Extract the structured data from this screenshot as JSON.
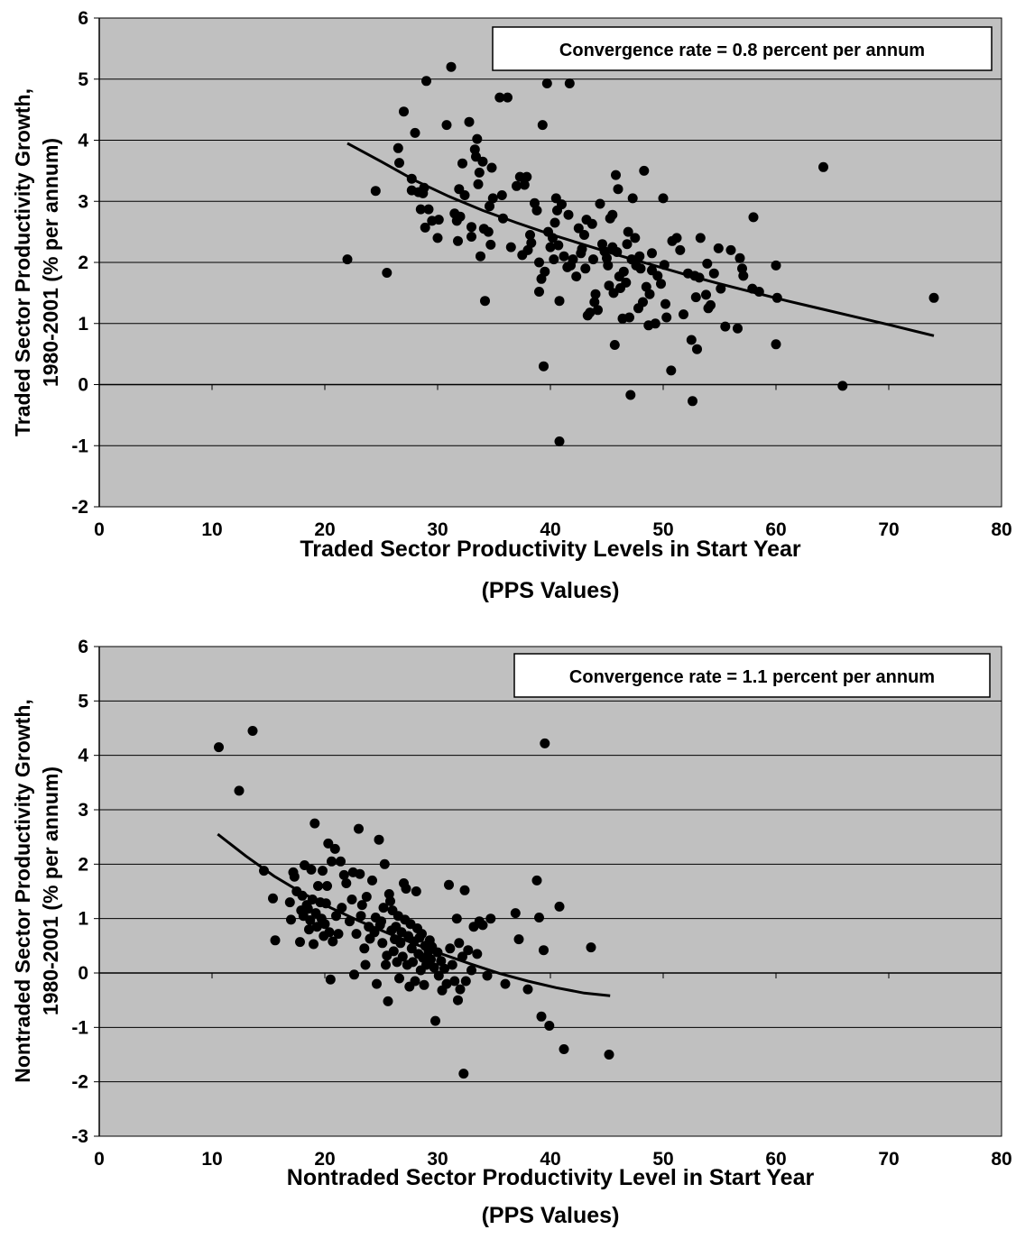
{
  "chart_data": [
    {
      "type": "scatter",
      "annotation": "Convergence rate = 0.8 percent per annum",
      "xlabel": [
        "Traded Sector Productivity Levels in Start Year",
        "(PPS Values)"
      ],
      "ylabel": [
        "Traded Sector Productivity Growth,",
        "1980-2001 (% per annum)"
      ],
      "xlim": [
        0,
        80
      ],
      "ylim": [
        -2,
        6
      ],
      "xticks": [
        0,
        10,
        20,
        30,
        40,
        50,
        60,
        70,
        80
      ],
      "yticks": [
        -2,
        -1,
        0,
        1,
        2,
        3,
        4,
        5,
        6
      ],
      "grid": "horizontal",
      "plot_background": "#c0c0c0",
      "marker_color": "#000000",
      "trendline": {
        "x": [
          22,
          25,
          28,
          31,
          34,
          37,
          40,
          43,
          46,
          49,
          52,
          55,
          58,
          61,
          64,
          67,
          70,
          74
        ],
        "y": [
          3.95,
          3.65,
          3.34,
          3.08,
          2.85,
          2.65,
          2.46,
          2.29,
          2.12,
          1.96,
          1.8,
          1.65,
          1.51,
          1.37,
          1.24,
          1.11,
          0.98,
          0.8
        ]
      },
      "points": [
        [
          22.0,
          2.05
        ],
        [
          24.5,
          3.17
        ],
        [
          25.5,
          1.83
        ],
        [
          26.5,
          3.87
        ],
        [
          26.6,
          3.63
        ],
        [
          27.0,
          4.47
        ],
        [
          27.7,
          3.37
        ],
        [
          27.7,
          3.18
        ],
        [
          28.0,
          4.12
        ],
        [
          28.3,
          3.15
        ],
        [
          28.5,
          2.87
        ],
        [
          28.7,
          3.13
        ],
        [
          28.8,
          3.22
        ],
        [
          28.9,
          2.57
        ],
        [
          29.0,
          4.97
        ],
        [
          29.2,
          2.87
        ],
        [
          29.5,
          2.68
        ],
        [
          30.0,
          2.4
        ],
        [
          30.1,
          2.7
        ],
        [
          30.8,
          4.25
        ],
        [
          31.2,
          5.2
        ],
        [
          31.5,
          2.8
        ],
        [
          31.7,
          2.68
        ],
        [
          31.8,
          2.35
        ],
        [
          31.9,
          3.2
        ],
        [
          32.0,
          2.75
        ],
        [
          32.2,
          3.62
        ],
        [
          32.4,
          3.1
        ],
        [
          32.8,
          4.3
        ],
        [
          33.0,
          2.42
        ],
        [
          33.0,
          2.58
        ],
        [
          33.3,
          3.85
        ],
        [
          33.4,
          3.73
        ],
        [
          33.5,
          4.02
        ],
        [
          33.6,
          3.28
        ],
        [
          33.7,
          3.47
        ],
        [
          33.8,
          2.1
        ],
        [
          34.0,
          3.65
        ],
        [
          34.1,
          2.55
        ],
        [
          34.2,
          1.37
        ],
        [
          34.5,
          2.5
        ],
        [
          34.6,
          2.92
        ],
        [
          34.7,
          2.29
        ],
        [
          34.8,
          3.55
        ],
        [
          34.9,
          3.05
        ],
        [
          35.5,
          4.7
        ],
        [
          35.7,
          3.1
        ],
        [
          35.8,
          2.72
        ],
        [
          36.2,
          4.7
        ],
        [
          36.5,
          2.25
        ],
        [
          37.0,
          3.25
        ],
        [
          37.3,
          3.4
        ],
        [
          37.5,
          2.12
        ],
        [
          37.7,
          3.27
        ],
        [
          37.9,
          3.4
        ],
        [
          38.0,
          2.2
        ],
        [
          38.2,
          2.45
        ],
        [
          38.3,
          2.32
        ],
        [
          38.6,
          2.97
        ],
        [
          38.8,
          2.85
        ],
        [
          39.0,
          1.52
        ],
        [
          39.0,
          2.0
        ],
        [
          39.2,
          1.73
        ],
        [
          39.3,
          4.25
        ],
        [
          39.4,
          0.3
        ],
        [
          39.5,
          1.85
        ],
        [
          39.7,
          4.93
        ],
        [
          39.8,
          2.5
        ],
        [
          40.0,
          2.25
        ],
        [
          40.2,
          2.4
        ],
        [
          40.3,
          2.05
        ],
        [
          40.4,
          2.65
        ],
        [
          40.5,
          3.05
        ],
        [
          40.6,
          2.85
        ],
        [
          40.7,
          2.28
        ],
        [
          40.8,
          1.37
        ],
        [
          40.8,
          -0.93
        ],
        [
          41.0,
          2.95
        ],
        [
          41.2,
          2.1
        ],
        [
          41.5,
          1.92
        ],
        [
          41.6,
          2.78
        ],
        [
          41.7,
          4.93
        ],
        [
          41.8,
          1.95
        ],
        [
          42.0,
          2.05
        ],
        [
          42.3,
          1.77
        ],
        [
          42.5,
          2.56
        ],
        [
          42.7,
          2.15
        ],
        [
          42.8,
          2.22
        ],
        [
          43.0,
          2.45
        ],
        [
          43.1,
          1.9
        ],
        [
          43.2,
          2.7
        ],
        [
          43.3,
          1.13
        ],
        [
          43.5,
          1.18
        ],
        [
          43.7,
          2.63
        ],
        [
          43.8,
          2.05
        ],
        [
          43.9,
          1.35
        ],
        [
          44.0,
          1.48
        ],
        [
          44.2,
          1.22
        ],
        [
          44.4,
          2.96
        ],
        [
          44.6,
          2.3
        ],
        [
          44.8,
          2.18
        ],
        [
          45.0,
          2.07
        ],
        [
          45.1,
          1.95
        ],
        [
          45.2,
          1.62
        ],
        [
          45.3,
          2.72
        ],
        [
          45.5,
          2.25
        ],
        [
          45.5,
          2.78
        ],
        [
          45.6,
          1.5
        ],
        [
          45.7,
          0.65
        ],
        [
          45.8,
          3.43
        ],
        [
          45.9,
          2.17
        ],
        [
          46.0,
          3.2
        ],
        [
          46.1,
          1.77
        ],
        [
          46.2,
          1.58
        ],
        [
          46.4,
          1.08
        ],
        [
          46.5,
          1.85
        ],
        [
          46.7,
          1.67
        ],
        [
          46.8,
          2.3
        ],
        [
          46.9,
          2.5
        ],
        [
          47.0,
          1.1
        ],
        [
          47.1,
          -0.17
        ],
        [
          47.2,
          2.05
        ],
        [
          47.3,
          3.05
        ],
        [
          47.5,
          2.4
        ],
        [
          47.6,
          1.95
        ],
        [
          47.8,
          1.25
        ],
        [
          47.9,
          2.1
        ],
        [
          48.0,
          1.9
        ],
        [
          48.2,
          1.35
        ],
        [
          48.3,
          3.5
        ],
        [
          48.5,
          1.6
        ],
        [
          48.7,
          0.97
        ],
        [
          48.8,
          1.48
        ],
        [
          49.0,
          1.87
        ],
        [
          49.0,
          2.15
        ],
        [
          49.3,
          1.0
        ],
        [
          49.5,
          1.78
        ],
        [
          49.8,
          1.65
        ],
        [
          50.0,
          3.05
        ],
        [
          50.1,
          1.96
        ],
        [
          50.2,
          1.32
        ],
        [
          50.3,
          1.1
        ],
        [
          50.7,
          0.23
        ],
        [
          50.8,
          2.35
        ],
        [
          51.2,
          2.4
        ],
        [
          51.5,
          2.2
        ],
        [
          51.8,
          1.15
        ],
        [
          52.2,
          1.82
        ],
        [
          52.5,
          0.73
        ],
        [
          52.6,
          -0.27
        ],
        [
          52.8,
          1.78
        ],
        [
          52.9,
          1.43
        ],
        [
          53.0,
          0.58
        ],
        [
          53.2,
          1.75
        ],
        [
          53.3,
          2.4
        ],
        [
          53.8,
          1.47
        ],
        [
          53.9,
          1.98
        ],
        [
          54.0,
          1.25
        ],
        [
          54.2,
          1.3
        ],
        [
          54.5,
          1.82
        ],
        [
          54.9,
          2.23
        ],
        [
          55.1,
          1.57
        ],
        [
          55.5,
          0.95
        ],
        [
          56.0,
          2.2
        ],
        [
          56.6,
          0.92
        ],
        [
          56.8,
          2.07
        ],
        [
          57.0,
          1.9
        ],
        [
          57.1,
          1.78
        ],
        [
          57.9,
          1.57
        ],
        [
          58.0,
          2.74
        ],
        [
          58.5,
          1.52
        ],
        [
          60.0,
          1.95
        ],
        [
          60.0,
          0.66
        ],
        [
          60.1,
          1.42
        ],
        [
          64.2,
          3.56
        ],
        [
          65.9,
          -0.02
        ],
        [
          74.0,
          1.42
        ]
      ]
    },
    {
      "type": "scatter",
      "annotation": "Convergence rate = 1.1 percent per annum",
      "xlabel": [
        "Nontraded Sector Productivity Level in Start Year",
        "(PPS Values)"
      ],
      "ylabel": [
        "Nontraded Sector Productivity Growth,",
        "1980-2001 (% per annum)"
      ],
      "xlim": [
        0,
        80
      ],
      "ylim": [
        -3,
        6
      ],
      "xticks": [
        0,
        10,
        20,
        30,
        40,
        50,
        60,
        70,
        80
      ],
      "yticks": [
        -3,
        -2,
        -1,
        0,
        1,
        2,
        3,
        4,
        5,
        6
      ],
      "grid": "horizontal",
      "plot_background": "#c0c0c0",
      "marker_color": "#000000",
      "trendline": {
        "x": [
          10.5,
          13,
          15.5,
          18,
          20.5,
          23,
          25.5,
          28,
          30.5,
          33,
          35.5,
          38,
          40.5,
          43,
          45.3
        ],
        "y": [
          2.55,
          2.15,
          1.78,
          1.47,
          1.2,
          0.96,
          0.74,
          0.53,
          0.34,
          0.16,
          -0.01,
          -0.15,
          -0.27,
          -0.37,
          -0.42
        ]
      },
      "points": [
        [
          10.6,
          4.15
        ],
        [
          12.4,
          3.35
        ],
        [
          13.6,
          4.45
        ],
        [
          14.6,
          1.88
        ],
        [
          15.4,
          1.37
        ],
        [
          15.6,
          0.6
        ],
        [
          16.9,
          1.3
        ],
        [
          17.0,
          0.98
        ],
        [
          17.2,
          1.85
        ],
        [
          17.3,
          1.77
        ],
        [
          17.5,
          1.5
        ],
        [
          17.8,
          0.57
        ],
        [
          17.9,
          1.15
        ],
        [
          18.0,
          1.42
        ],
        [
          18.1,
          1.05
        ],
        [
          18.2,
          1.98
        ],
        [
          18.4,
          1.25
        ],
        [
          18.5,
          1.18
        ],
        [
          18.6,
          0.8
        ],
        [
          18.7,
          0.97
        ],
        [
          18.8,
          1.9
        ],
        [
          18.9,
          1.35
        ],
        [
          19.0,
          0.53
        ],
        [
          19.1,
          2.75
        ],
        [
          19.2,
          1.1
        ],
        [
          19.3,
          0.85
        ],
        [
          19.4,
          1.6
        ],
        [
          19.6,
          1.3
        ],
        [
          19.7,
          1.0
        ],
        [
          19.8,
          1.88
        ],
        [
          19.9,
          0.68
        ],
        [
          20.0,
          0.9
        ],
        [
          20.1,
          1.28
        ],
        [
          20.2,
          1.6
        ],
        [
          20.3,
          2.38
        ],
        [
          20.4,
          0.75
        ],
        [
          20.5,
          -0.12
        ],
        [
          20.6,
          2.05
        ],
        [
          20.7,
          0.58
        ],
        [
          20.9,
          2.28
        ],
        [
          21.0,
          1.05
        ],
        [
          21.2,
          0.72
        ],
        [
          21.4,
          2.05
        ],
        [
          21.5,
          1.2
        ],
        [
          21.7,
          1.8
        ],
        [
          21.9,
          1.65
        ],
        [
          22.2,
          0.95
        ],
        [
          22.4,
          1.35
        ],
        [
          22.5,
          1.85
        ],
        [
          22.6,
          -0.03
        ],
        [
          22.8,
          0.72
        ],
        [
          23.0,
          2.65
        ],
        [
          23.1,
          1.82
        ],
        [
          23.2,
          1.05
        ],
        [
          23.3,
          1.25
        ],
        [
          23.5,
          0.45
        ],
        [
          23.6,
          0.15
        ],
        [
          23.7,
          1.4
        ],
        [
          23.9,
          0.85
        ],
        [
          24.0,
          0.63
        ],
        [
          24.2,
          1.7
        ],
        [
          24.4,
          0.75
        ],
        [
          24.5,
          1.02
        ],
        [
          24.6,
          -0.2
        ],
        [
          24.8,
          2.45
        ],
        [
          24.9,
          0.88
        ],
        [
          25.0,
          0.95
        ],
        [
          25.1,
          0.55
        ],
        [
          25.2,
          1.2
        ],
        [
          25.3,
          2.0
        ],
        [
          25.4,
          0.15
        ],
        [
          25.5,
          0.32
        ],
        [
          25.6,
          -0.52
        ],
        [
          25.7,
          1.45
        ],
        [
          25.8,
          1.32
        ],
        [
          25.9,
          0.78
        ],
        [
          26.0,
          1.15
        ],
        [
          26.1,
          0.4
        ],
        [
          26.2,
          0.62
        ],
        [
          26.3,
          0.85
        ],
        [
          26.4,
          0.2
        ],
        [
          26.5,
          1.05
        ],
        [
          26.6,
          -0.1
        ],
        [
          26.7,
          0.55
        ],
        [
          26.8,
          0.75
        ],
        [
          26.9,
          0.3
        ],
        [
          27.0,
          1.65
        ],
        [
          27.1,
          0.98
        ],
        [
          27.2,
          1.55
        ],
        [
          27.3,
          0.15
        ],
        [
          27.4,
          0.68
        ],
        [
          27.5,
          -0.25
        ],
        [
          27.6,
          0.9
        ],
        [
          27.7,
          0.45
        ],
        [
          27.8,
          0.2
        ],
        [
          27.9,
          0.58
        ],
        [
          28.0,
          -0.15
        ],
        [
          28.1,
          1.5
        ],
        [
          28.2,
          0.82
        ],
        [
          28.3,
          0.35
        ],
        [
          28.4,
          0.65
        ],
        [
          28.5,
          0.05
        ],
        [
          28.6,
          0.72
        ],
        [
          28.7,
          0.28
        ],
        [
          28.8,
          -0.22
        ],
        [
          28.9,
          0.5
        ],
        [
          29.0,
          0.15
        ],
        [
          29.2,
          0.4
        ],
        [
          29.3,
          0.6
        ],
        [
          29.4,
          0.25
        ],
        [
          29.5,
          0.48
        ],
        [
          29.7,
          0.1
        ],
        [
          29.8,
          -0.88
        ],
        [
          30.0,
          0.38
        ],
        [
          30.1,
          -0.05
        ],
        [
          30.3,
          0.22
        ],
        [
          30.4,
          -0.32
        ],
        [
          30.6,
          0.08
        ],
        [
          30.8,
          -0.2
        ],
        [
          31.0,
          1.62
        ],
        [
          31.1,
          0.45
        ],
        [
          31.3,
          0.15
        ],
        [
          31.5,
          -0.15
        ],
        [
          31.7,
          1.0
        ],
        [
          31.8,
          -0.5
        ],
        [
          31.9,
          0.55
        ],
        [
          32.0,
          -0.3
        ],
        [
          32.2,
          0.3
        ],
        [
          32.3,
          -1.85
        ],
        [
          32.4,
          1.52
        ],
        [
          32.5,
          -0.15
        ],
        [
          32.7,
          0.42
        ],
        [
          33.0,
          0.05
        ],
        [
          33.2,
          0.85
        ],
        [
          33.5,
          0.35
        ],
        [
          33.7,
          0.95
        ],
        [
          34.0,
          0.88
        ],
        [
          34.4,
          -0.05
        ],
        [
          34.7,
          1.0
        ],
        [
          36.0,
          -0.2
        ],
        [
          36.9,
          1.1
        ],
        [
          37.2,
          0.62
        ],
        [
          38.0,
          -0.3
        ],
        [
          38.8,
          1.7
        ],
        [
          39.0,
          1.02
        ],
        [
          39.2,
          -0.8
        ],
        [
          39.4,
          0.42
        ],
        [
          39.5,
          4.22
        ],
        [
          39.9,
          -0.97
        ],
        [
          40.8,
          1.22
        ],
        [
          41.2,
          -1.4
        ],
        [
          43.6,
          0.47
        ],
        [
          45.2,
          -1.5
        ]
      ]
    }
  ]
}
